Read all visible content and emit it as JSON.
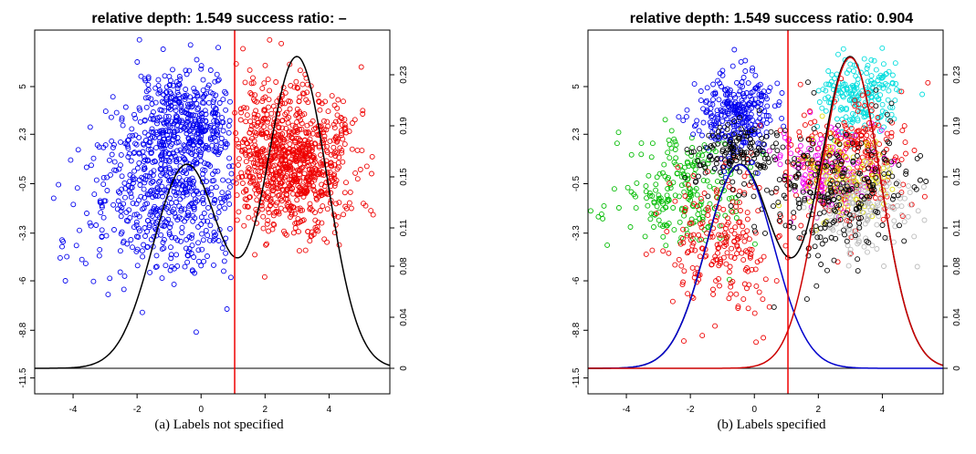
{
  "chart_data": [
    {
      "type": "scatter",
      "title": "relative depth:  1.549 success ratio:  –",
      "caption": "(a)  Labels not specified",
      "xlim": [
        -5.2,
        5.9
      ],
      "ylim": [
        -12.4,
        8.2
      ],
      "right_ylim": [
        -0.02,
        0.265
      ],
      "x_ticks": [
        "-4",
        "-2",
        "0",
        "2",
        "4"
      ],
      "x_tick_values": [
        -4,
        -2,
        0,
        2,
        4
      ],
      "y_ticks": [
        "-11.5",
        "-8.8",
        "-6",
        "-3.3",
        "-0.5",
        "2.3",
        "5"
      ],
      "y_tick_values": [
        -11.5,
        -8.8,
        -6,
        -3.3,
        -0.5,
        2.3,
        5
      ],
      "right_y_ticks": [
        "0",
        "0.04",
        "0.08",
        "0.11",
        "0.15",
        "0.19",
        "0.23"
      ],
      "right_y_tick_values": [
        0,
        0.04,
        0.08,
        0.11,
        0.15,
        0.19,
        0.23
      ],
      "split_x": 1.05,
      "split_color": "#ee0000",
      "baseline_y": -11.5,
      "clusters": [
        {
          "color": "#0000ee",
          "cx": -0.5,
          "cy": 3.0,
          "sx": 0.8,
          "sy": 1.6,
          "n": 420,
          "xmax": 1.05,
          "seed": 11
        },
        {
          "color": "#0000ee",
          "cx": -1.0,
          "cy": -1.5,
          "sx": 1.3,
          "sy": 2.4,
          "n": 520,
          "xmax": 1.05,
          "seed": 12
        },
        {
          "color": "#ee0000",
          "cx": 2.8,
          "cy": 0.8,
          "sx": 1.0,
          "sy": 2.0,
          "n": 900,
          "xmin": 1.05,
          "seed": 13
        }
      ],
      "density_curves": [
        {
          "color": "#000000",
          "components": [
            {
              "w": 0.42,
              "mu": -0.45,
              "sd": 1.05
            },
            {
              "w": 0.58,
              "mu": 3.0,
              "sd": 0.95
            }
          ]
        }
      ]
    },
    {
      "type": "scatter",
      "title": "relative depth:  1.549 success ratio:  0.904",
      "caption": "(b)  Labels specified",
      "xlim": [
        -5.2,
        5.9
      ],
      "ylim": [
        -12.4,
        8.2
      ],
      "right_ylim": [
        -0.02,
        0.265
      ],
      "x_ticks": [
        "-4",
        "-2",
        "0",
        "2",
        "4"
      ],
      "x_tick_values": [
        -4,
        -2,
        0,
        2,
        4
      ],
      "y_ticks": [
        "-11.5",
        "-8.8",
        "-6",
        "-3.3",
        "-0.5",
        "2.3",
        "5"
      ],
      "y_tick_values": [
        -11.5,
        -8.8,
        -6,
        -3.3,
        -0.5,
        2.3,
        5
      ],
      "right_y_ticks": [
        "0",
        "0.04",
        "0.08",
        "0.11",
        "0.15",
        "0.19",
        "0.23"
      ],
      "right_y_tick_values": [
        0,
        0.04,
        0.08,
        0.11,
        0.15,
        0.19,
        0.23
      ],
      "split_x": 1.05,
      "split_color": "#ee0000",
      "baseline_y": -11.5,
      "clusters": [
        {
          "color": "#00bb00",
          "cx": -2.2,
          "cy": -1.0,
          "sx": 1.0,
          "sy": 1.6,
          "n": 220,
          "seed": 21
        },
        {
          "color": "#ee0000",
          "cx": -1.0,
          "cy": -3.8,
          "sx": 0.8,
          "sy": 2.0,
          "n": 220,
          "seed": 22
        },
        {
          "color": "#0000ee",
          "cx": -0.6,
          "cy": 3.4,
          "sx": 0.6,
          "sy": 1.2,
          "n": 300,
          "seed": 23
        },
        {
          "color": "#000000",
          "cx": -0.7,
          "cy": 1.2,
          "sx": 0.7,
          "sy": 1.0,
          "n": 140,
          "seed": 24
        },
        {
          "color": "#00dddd",
          "cx": 3.3,
          "cy": 4.4,
          "sx": 0.6,
          "sy": 1.0,
          "n": 200,
          "seed": 25
        },
        {
          "color": "#ee0000",
          "cx": 3.0,
          "cy": 1.0,
          "sx": 0.9,
          "sy": 1.8,
          "n": 260,
          "seed": 26
        },
        {
          "color": "#ee00ee",
          "cx": 2.2,
          "cy": 0.2,
          "sx": 0.8,
          "sy": 1.2,
          "n": 140,
          "seed": 27
        },
        {
          "color": "#dddd00",
          "cx": 2.9,
          "cy": -0.2,
          "sx": 0.7,
          "sy": 1.2,
          "n": 120,
          "seed": 28
        },
        {
          "color": "#bbbbbb",
          "cx": 3.2,
          "cy": -1.8,
          "sx": 0.8,
          "sy": 1.3,
          "n": 160,
          "seed": 29
        },
        {
          "color": "#000000",
          "cx": 2.6,
          "cy": -1.0,
          "sx": 1.1,
          "sy": 2.0,
          "n": 240,
          "seed": 30
        }
      ],
      "density_curves": [
        {
          "color": "#000000",
          "components": [
            {
              "w": 0.42,
              "mu": -0.45,
              "sd": 1.05
            },
            {
              "w": 0.58,
              "mu": 3.0,
              "sd": 0.95
            }
          ]
        },
        {
          "color": "#0000cc",
          "components": [
            {
              "w": 0.42,
              "mu": -0.45,
              "sd": 1.05
            }
          ]
        },
        {
          "color": "#cc0000",
          "components": [
            {
              "w": 0.58,
              "mu": 3.0,
              "sd": 0.95
            }
          ]
        }
      ]
    }
  ]
}
